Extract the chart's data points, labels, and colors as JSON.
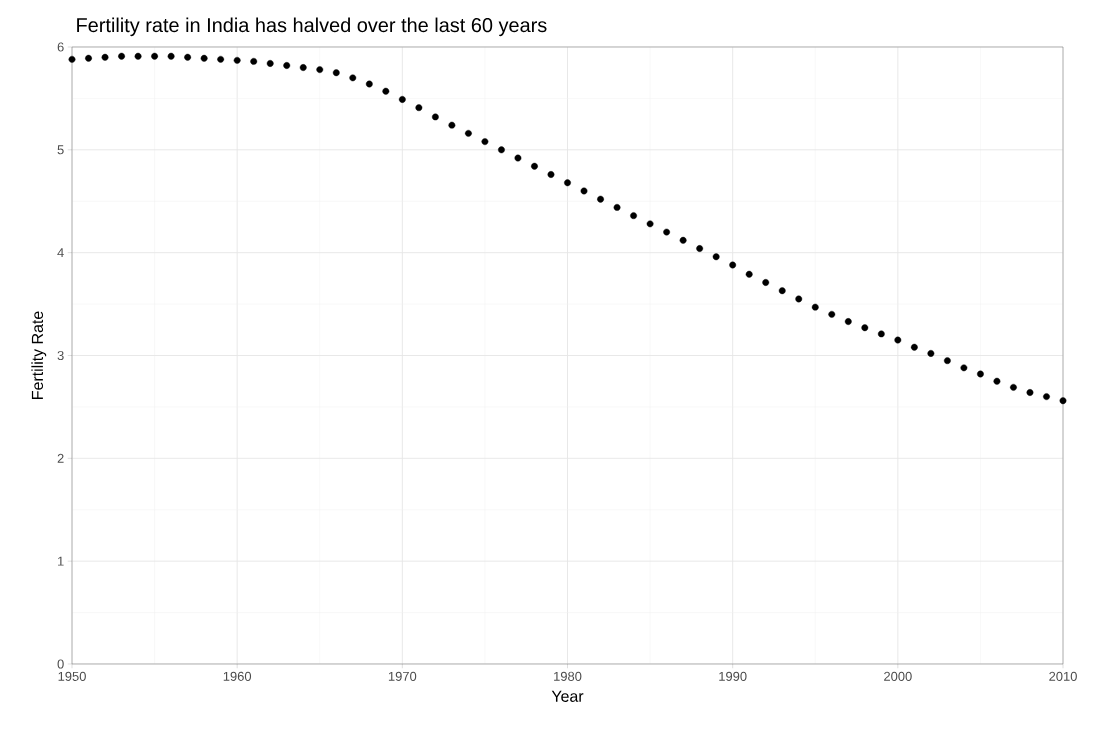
{
  "chart_data": {
    "type": "scatter",
    "title": "Fertility rate in India has halved over the last 60 years",
    "xlabel": "Year",
    "ylabel": "Fertility Rate",
    "x": [
      1950,
      1951,
      1952,
      1953,
      1954,
      1955,
      1956,
      1957,
      1958,
      1959,
      1960,
      1961,
      1962,
      1963,
      1964,
      1965,
      1966,
      1967,
      1968,
      1969,
      1970,
      1971,
      1972,
      1973,
      1974,
      1975,
      1976,
      1977,
      1978,
      1979,
      1980,
      1981,
      1982,
      1983,
      1984,
      1985,
      1986,
      1987,
      1988,
      1989,
      1990,
      1991,
      1992,
      1993,
      1994,
      1995,
      1996,
      1997,
      1998,
      1999,
      2000,
      2001,
      2002,
      2003,
      2004,
      2005,
      2006,
      2007,
      2008,
      2009,
      2010
    ],
    "values": [
      5.88,
      5.89,
      5.9,
      5.91,
      5.91,
      5.91,
      5.91,
      5.9,
      5.89,
      5.88,
      5.87,
      5.86,
      5.84,
      5.82,
      5.8,
      5.78,
      5.75,
      5.7,
      5.64,
      5.57,
      5.49,
      5.41,
      5.32,
      5.24,
      5.16,
      5.08,
      5.0,
      4.92,
      4.84,
      4.76,
      4.68,
      4.6,
      4.52,
      4.44,
      4.36,
      4.28,
      4.2,
      4.12,
      4.04,
      3.96,
      3.88,
      3.79,
      3.71,
      3.63,
      3.55,
      3.47,
      3.4,
      3.33,
      3.27,
      3.21,
      3.15,
      3.08,
      3.02,
      2.95,
      2.88,
      2.82,
      2.75,
      2.69,
      2.64,
      2.6,
      2.56
    ],
    "color": "#000000",
    "marker": "circle",
    "grid": true,
    "xlim": [
      1950,
      2010
    ],
    "xticks": [
      1950,
      1960,
      1970,
      1980,
      1990,
      2000,
      2010
    ],
    "ylim": [
      0,
      6
    ],
    "yticks": [
      0,
      1,
      2,
      3,
      4,
      5,
      6
    ]
  }
}
